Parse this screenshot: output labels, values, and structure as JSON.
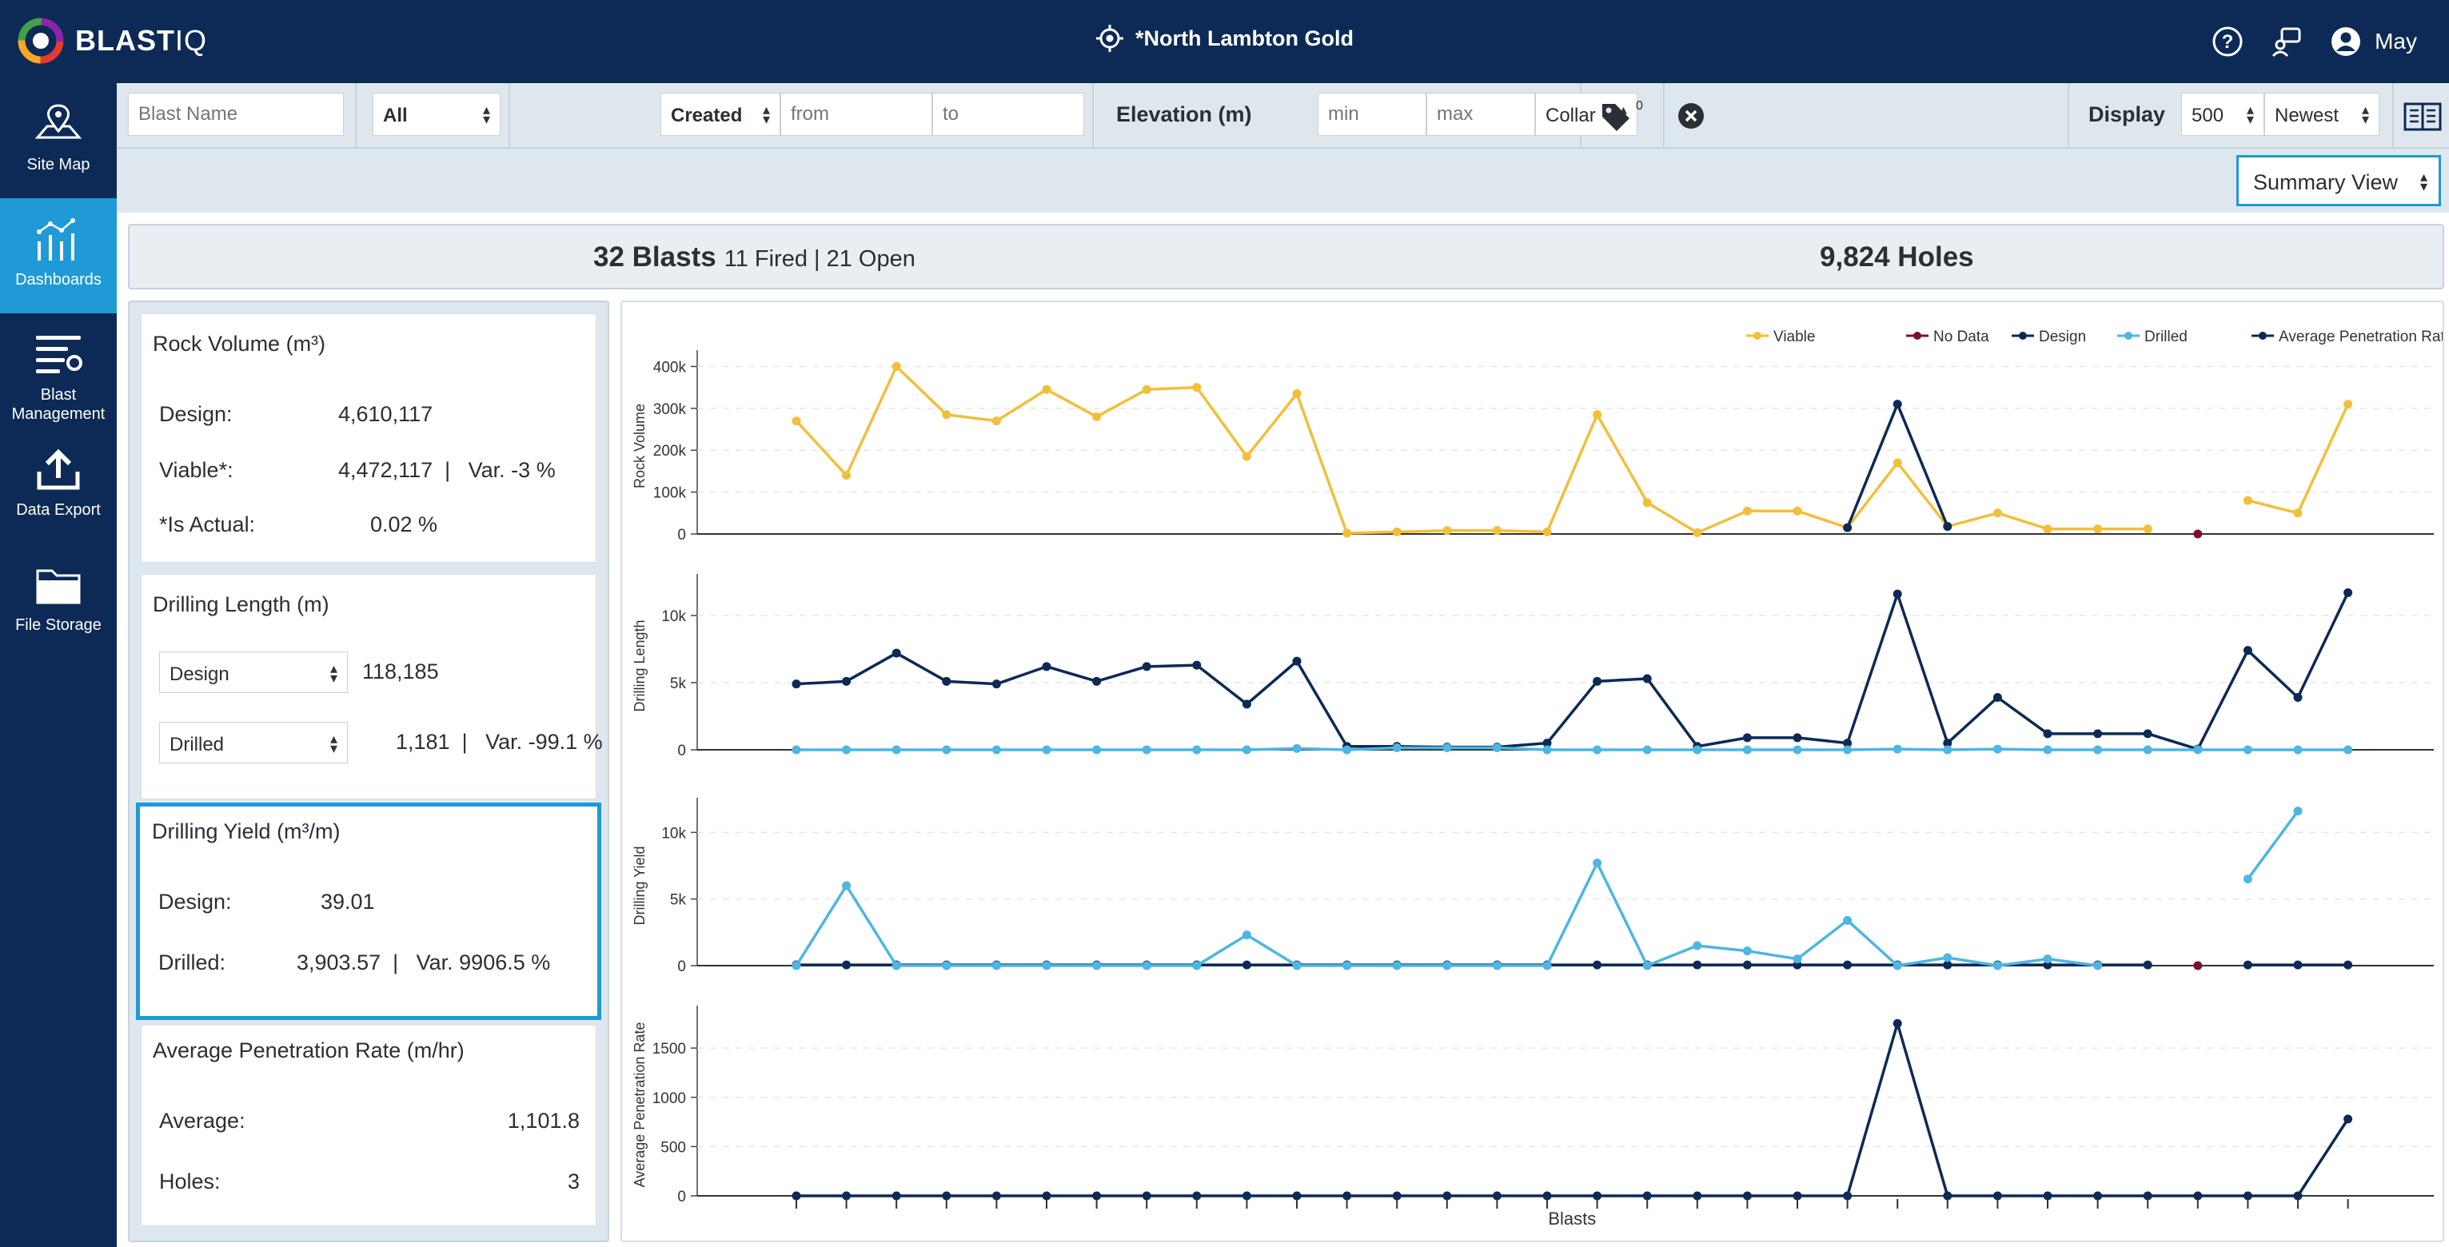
{
  "app": {
    "logo_main": "BLAST",
    "logo_sub": "IQ",
    "site": "*North Lambton Gold",
    "user": "May"
  },
  "icons": {
    "site": "crosshair-icon",
    "help": "help-circle-icon",
    "support": "support-chat-icon",
    "user": "user-avatar-icon",
    "docs": "book-icon",
    "tags": "tag-icon",
    "clear": "clear-circle-icon"
  },
  "sidebar": {
    "items": [
      {
        "label": "Site Map",
        "icon": "map-pin-icon"
      },
      {
        "label": "Dashboards",
        "icon": "dashboard-chart-icon",
        "active": true
      },
      {
        "label": "Blast Management",
        "icon": "list-settings-icon"
      },
      {
        "label": "Data Export",
        "icon": "upload-icon"
      },
      {
        "label": "File Storage",
        "icon": "folder-icon"
      }
    ]
  },
  "filters": {
    "blast_name_placeholder": "Blast Name",
    "status": "All",
    "date_type": "Created",
    "from_placeholder": "from",
    "to_placeholder": "to",
    "elevation_label": "Elevation (m)",
    "min_placeholder": "min",
    "max_placeholder": "max",
    "elevation_ref": "Collar",
    "tag_count": "0",
    "display_label": "Display",
    "display_count": "500",
    "sort": "Newest"
  },
  "view": {
    "mode": "Summary View"
  },
  "summary": {
    "blasts": "32 Blasts",
    "breakdown": "11 Fired | 21 Open",
    "holes": "9,824 Holes"
  },
  "cards": {
    "rock_volume": {
      "title": "Rock Volume (m³)",
      "design_label": "Design:",
      "design_value": "4,610,117",
      "viable_label": "Viable*:",
      "viable_value": "4,472,117",
      "viable_var": "Var. -3 %",
      "actual_label": "*Is Actual:",
      "actual_value": "0.02 %"
    },
    "drilling_length": {
      "title": "Drilling Length (m)",
      "select1": "Design",
      "value1": "118,185",
      "select2": "Drilled",
      "value2": "1,181",
      "var2": "Var. -99.1 %"
    },
    "drilling_yield": {
      "title": "Drilling Yield (m³/m)",
      "design_label": "Design:",
      "design_value": "39.01",
      "drilled_label": "Drilled:",
      "drilled_value": "3,903.57",
      "drilled_var": "Var. 9906.5 %"
    },
    "penetration": {
      "title": "Average Penetration Rate (m/hr)",
      "average_label": "Average:",
      "average_value": "1,101.8",
      "holes_label": "Holes:",
      "holes_value": "3"
    }
  },
  "chart_data": {
    "type": "line",
    "xlabel": "Blasts",
    "x_count": 32,
    "colors": {
      "Viable": "#f2bf3a",
      "No Data": "#7a1030",
      "Design": "#0c2a55",
      "Drilled": "#4db6e2",
      "Average Penetration Rate": "#0c2a55"
    },
    "legend": [
      "Viable",
      "No Data",
      "Design",
      "Drilled",
      "Average Penetration Rate"
    ],
    "panels": [
      {
        "ylabel": "Rock Volume",
        "ylim": [
          0,
          420000
        ],
        "ticks": [
          0,
          100000,
          200000,
          300000,
          400000
        ],
        "tick_labels": [
          "0",
          "100k",
          "200k",
          "300k",
          "400k"
        ],
        "series": [
          {
            "name": "Viable",
            "values": [
              270000,
              140000,
              400000,
              285000,
              270000,
              345000,
              280000,
              345000,
              350000,
              185000,
              335000,
              2000,
              5000,
              8000,
              8000,
              5000,
              285000,
              75000,
              3000,
              55000,
              55000,
              15000,
              170000,
              18000,
              50000,
              12000,
              12000,
              12000,
              null,
              80000,
              50000,
              310000
            ]
          },
          {
            "name": "Design",
            "values": [
              null,
              null,
              null,
              null,
              null,
              null,
              null,
              null,
              null,
              null,
              null,
              null,
              null,
              null,
              null,
              null,
              null,
              null,
              null,
              null,
              null,
              15000,
              310000,
              18000,
              null,
              null,
              null,
              null,
              null,
              null,
              null,
              null
            ]
          },
          {
            "name": "No Data",
            "values": [
              null,
              null,
              null,
              null,
              null,
              null,
              null,
              null,
              null,
              null,
              null,
              null,
              null,
              null,
              null,
              null,
              null,
              null,
              null,
              null,
              null,
              null,
              null,
              null,
              null,
              null,
              null,
              null,
              0,
              null,
              null,
              null
            ]
          }
        ]
      },
      {
        "ylabel": "Drilling Length",
        "ylim": [
          0,
          12500
        ],
        "ticks": [
          0,
          5000,
          10000
        ],
        "tick_labels": [
          "0",
          "5k",
          "10k"
        ],
        "series": [
          {
            "name": "Design",
            "values": [
              4900,
              5100,
              7200,
              5100,
              4900,
              6200,
              5100,
              6200,
              6300,
              3400,
              6600,
              250,
              250,
              200,
              200,
              500,
              5100,
              5300,
              250,
              900,
              900,
              500,
              11600,
              500,
              3900,
              1200,
              1200,
              1200,
              50,
              7400,
              3900,
              11700
            ]
          },
          {
            "name": "Drilled",
            "values": [
              0,
              0,
              0,
              0,
              0,
              0,
              0,
              0,
              0,
              0,
              100,
              0,
              150,
              150,
              150,
              0,
              0,
              0,
              0,
              0,
              0,
              0,
              50,
              0,
              50,
              0,
              0,
              0,
              0,
              0,
              0,
              0
            ]
          }
        ]
      },
      {
        "ylabel": "Drilling Yield",
        "ylim": [
          0,
          12000
        ],
        "ticks": [
          0,
          5000,
          10000
        ],
        "tick_labels": [
          "0",
          "5k",
          "10k"
        ],
        "series": [
          {
            "name": "Design",
            "values": [
              50,
              50,
              50,
              50,
              50,
              50,
              50,
              50,
              50,
              50,
              50,
              50,
              50,
              50,
              50,
              50,
              50,
              50,
              50,
              50,
              50,
              50,
              50,
              50,
              50,
              50,
              50,
              50,
              null,
              50,
              50,
              50
            ]
          },
          {
            "name": "Drilled",
            "values": [
              0,
              6000,
              0,
              0,
              0,
              0,
              0,
              0,
              0,
              2300,
              0,
              0,
              0,
              0,
              0,
              0,
              7700,
              0,
              1500,
              1100,
              500,
              3400,
              0,
              600,
              0,
              500,
              0,
              null,
              null,
              6500,
              11600,
              null
            ]
          },
          {
            "name": "No Data",
            "values": [
              null,
              null,
              null,
              null,
              null,
              null,
              null,
              null,
              null,
              null,
              null,
              null,
              null,
              null,
              null,
              null,
              null,
              null,
              null,
              null,
              null,
              null,
              null,
              null,
              null,
              null,
              null,
              null,
              0,
              null,
              null,
              null
            ]
          }
        ]
      },
      {
        "ylabel": "Average Penetration Rate",
        "ylim": [
          0,
          1850
        ],
        "ticks": [
          0,
          500,
          1000,
          1500
        ],
        "tick_labels": [
          "0",
          "500",
          "1000",
          "1500"
        ],
        "series": [
          {
            "name": "Average Penetration Rate",
            "values": [
              0,
              0,
              0,
              0,
              0,
              0,
              0,
              0,
              0,
              0,
              0,
              0,
              0,
              0,
              0,
              0,
              0,
              0,
              0,
              0,
              0,
              0,
              1750,
              0,
              0,
              0,
              0,
              0,
              0,
              0,
              0,
              780
            ]
          }
        ]
      }
    ]
  }
}
